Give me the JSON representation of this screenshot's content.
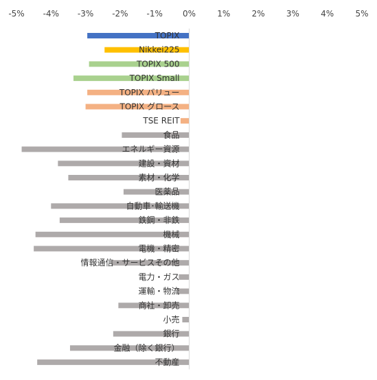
{
  "chart_data": {
    "type": "bar",
    "orientation": "horizontal",
    "title": "",
    "xlabel": "",
    "ylabel": "",
    "xlim": [
      -5,
      5
    ],
    "x_ticks": [
      -5,
      -4,
      -3,
      -2,
      -1,
      0,
      1,
      2,
      3,
      4,
      5
    ],
    "x_tick_labels": [
      "-5%",
      "-4%",
      "-3%",
      "-2%",
      "-1%",
      "0%",
      "1%",
      "2%",
      "3%",
      "4%",
      "5%"
    ],
    "tick_position": "top",
    "grid": false,
    "legend": "none",
    "categories": [
      "TOPIX",
      "Nikkei225",
      "TOPIX 500",
      "TOPIX Small",
      "TOPIX バリュー",
      "TOPIX グロース",
      "TSE REIT",
      "食品",
      "エネルギー資源",
      "建設・資材",
      "素材・化学",
      "医薬品",
      "自動車･輸送機",
      "鉄鋼・非鉄",
      "機械",
      "電機・精密",
      "情報通信・サービスその他",
      "電力・ガス",
      "運輸・物流",
      "商社・卸売",
      "小売",
      "銀行",
      "金融（除く銀行）",
      "不動産"
    ],
    "values": [
      -2.95,
      -2.45,
      -2.9,
      -3.35,
      -2.95,
      -3.0,
      -0.25,
      -1.95,
      -4.85,
      -3.8,
      -3.5,
      -1.9,
      -4.0,
      -3.75,
      -4.45,
      -4.5,
      -2.25,
      -0.3,
      -0.35,
      -2.05,
      -0.2,
      -2.2,
      -3.45,
      -4.4
    ],
    "colors": [
      "#4472c4",
      "#ffc000",
      "#a9d18e",
      "#a9d18e",
      "#f4b183",
      "#f4b183",
      "#f4b183",
      "#aeaaaa",
      "#aeaaaa",
      "#aeaaaa",
      "#aeaaaa",
      "#aeaaaa",
      "#aeaaaa",
      "#aeaaaa",
      "#aeaaaa",
      "#aeaaaa",
      "#aeaaaa",
      "#aeaaaa",
      "#aeaaaa",
      "#aeaaaa",
      "#aeaaaa",
      "#aeaaaa",
      "#aeaaaa",
      "#aeaaaa"
    ]
  }
}
